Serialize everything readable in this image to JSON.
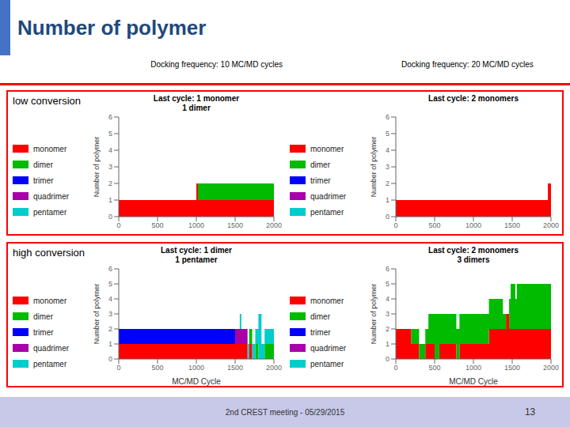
{
  "title": "Number of polymer",
  "annotations": [
    "Docking frequency: 10 MC/MD cycles",
    "Docking frequency: 20 MC/MD cycles",
    "low conversion",
    "high conversion",
    "2nd CREST meeting - 05/29/2015",
    "13"
  ],
  "chart_data": [
    {
      "type": "bar",
      "stacked": true,
      "grid": false,
      "legend": "left",
      "bins": [
        0,
        1000,
        1020,
        2000
      ],
      "series": [
        {
          "name": "monomer",
          "color": "#FF0000",
          "values": [
            1,
            2,
            1
          ]
        },
        {
          "name": "dimer",
          "color": "#00BB00",
          "values": [
            0,
            0,
            1
          ]
        },
        {
          "name": "trimer",
          "color": "#0000FF",
          "values": [
            0,
            0,
            0
          ]
        },
        {
          "name": "quadrimer",
          "color": "#AA00AA",
          "values": [
            0,
            0,
            0
          ]
        },
        {
          "name": "pentamer",
          "color": "#00CCCC",
          "values": [
            0,
            0,
            0
          ]
        }
      ],
      "xlim": [
        0,
        2000
      ],
      "xticks": [
        0,
        500,
        1000,
        1500,
        2000
      ],
      "ylim": [
        0,
        6
      ],
      "yticks": [
        0,
        1,
        2,
        3,
        4,
        5,
        6
      ],
      "ylabel": "Number of polymer",
      "annotations": [
        "Last cycle: 1 monomer\n1 dimer"
      ]
    },
    {
      "type": "bar",
      "stacked": true,
      "grid": false,
      "legend": "left",
      "bins": [
        0,
        1960,
        1980,
        2000
      ],
      "series": [
        {
          "name": "monomer",
          "color": "#FF0000",
          "values": [
            1,
            2,
            2
          ]
        },
        {
          "name": "dimer",
          "color": "#00BB00",
          "values": [
            0,
            0,
            0
          ]
        },
        {
          "name": "trimer",
          "color": "#0000FF",
          "values": [
            0,
            0,
            0
          ]
        },
        {
          "name": "quadrimer",
          "color": "#AA00AA",
          "values": [
            0,
            0,
            0
          ]
        },
        {
          "name": "pentamer",
          "color": "#00CCCC",
          "values": [
            0,
            0,
            0
          ]
        }
      ],
      "xlim": [
        0,
        2000
      ],
      "xticks": [
        0,
        500,
        1000,
        1500,
        2000
      ],
      "ylim": [
        0,
        6
      ],
      "yticks": [
        0,
        1,
        2,
        3,
        4,
        5,
        6
      ],
      "ylabel": "Number of polymer",
      "annotations": [
        "Last cycle: 2 monomers"
      ]
    },
    {
      "type": "bar",
      "stacked": true,
      "grid": false,
      "legend": "left",
      "bins": [
        0,
        100,
        1500,
        1560,
        1580,
        1660,
        1680,
        1720,
        1760,
        1800,
        1840,
        1880,
        2000
      ],
      "series": [
        {
          "name": "monomer",
          "color": "#FF0000",
          "values": [
            1,
            1,
            1,
            1,
            1,
            0,
            1,
            0,
            0,
            0,
            0,
            0
          ]
        },
        {
          "name": "dimer",
          "color": "#00BB00",
          "values": [
            0,
            0,
            0,
            0,
            0,
            0,
            1,
            0,
            1,
            0,
            0,
            1
          ]
        },
        {
          "name": "trimer",
          "color": "#0000FF",
          "values": [
            1,
            1,
            0,
            0,
            0,
            0,
            0,
            0,
            0,
            0,
            0,
            0
          ]
        },
        {
          "name": "quadrimer",
          "color": "#AA00AA",
          "values": [
            0,
            0,
            1,
            1,
            1,
            0,
            0,
            0,
            0,
            0,
            0,
            0
          ]
        },
        {
          "name": "pentamer",
          "color": "#00CCCC",
          "values": [
            0,
            0,
            0,
            1,
            0,
            1,
            0,
            1,
            1,
            3,
            1,
            1
          ]
        }
      ],
      "xlim": [
        0,
        2000
      ],
      "xticks": [
        0,
        500,
        1000,
        1500,
        2000
      ],
      "ylim": [
        0,
        6
      ],
      "yticks": [
        0,
        1,
        2,
        3,
        4,
        5,
        6
      ],
      "ylabel": "Number of polymer",
      "xlabel": "MC/MD Cycle",
      "annotations": [
        "Last cycle: 1 dimer\n1 pentamer"
      ]
    },
    {
      "type": "bar",
      "stacked": true,
      "grid": false,
      "legend": "left",
      "bins": [
        0,
        200,
        300,
        380,
        420,
        500,
        560,
        600,
        700,
        780,
        820,
        1200,
        1380,
        1420,
        1460,
        1480,
        1500,
        1540,
        1560,
        1580,
        2000
      ],
      "series": [
        {
          "name": "monomer",
          "color": "#FF0000",
          "values": [
            2,
            1,
            0,
            1,
            1,
            0,
            1,
            1,
            1,
            0,
            1,
            2,
            2,
            3,
            2,
            2,
            2,
            2,
            2,
            2
          ]
        },
        {
          "name": "dimer",
          "color": "#00BB00",
          "values": [
            0,
            1,
            1,
            1,
            2,
            3,
            2,
            2,
            2,
            2,
            2,
            2,
            1,
            0,
            2,
            3,
            3,
            2,
            3,
            3
          ]
        },
        {
          "name": "trimer",
          "color": "#0000FF",
          "values": [
            0,
            0,
            0,
            0,
            0,
            0,
            0,
            0,
            0,
            0,
            0,
            0,
            0,
            0,
            0,
            0,
            0,
            0,
            0,
            0
          ]
        },
        {
          "name": "quadrimer",
          "color": "#AA00AA",
          "values": [
            0,
            0,
            0,
            0,
            0,
            0,
            0,
            0,
            0,
            0,
            0,
            0,
            0,
            0,
            0,
            0,
            0,
            0,
            0,
            0
          ]
        },
        {
          "name": "pentamer",
          "color": "#00CCCC",
          "values": [
            0,
            0,
            0,
            0,
            0,
            0,
            0,
            0,
            0,
            0,
            0,
            0,
            0,
            0,
            0,
            0,
            0,
            0,
            0,
            0
          ]
        }
      ],
      "xlim": [
        0,
        2000
      ],
      "xticks": [
        0,
        500,
        1000,
        1500,
        2000
      ],
      "ylim": [
        0,
        6
      ],
      "yticks": [
        0,
        1,
        2,
        3,
        4,
        5,
        6
      ],
      "ylabel": "Number of polymer",
      "xlabel": "MC/MD Cycle",
      "annotations": [
        "Last cycle: 2 monomers\n3 dimers"
      ]
    }
  ]
}
